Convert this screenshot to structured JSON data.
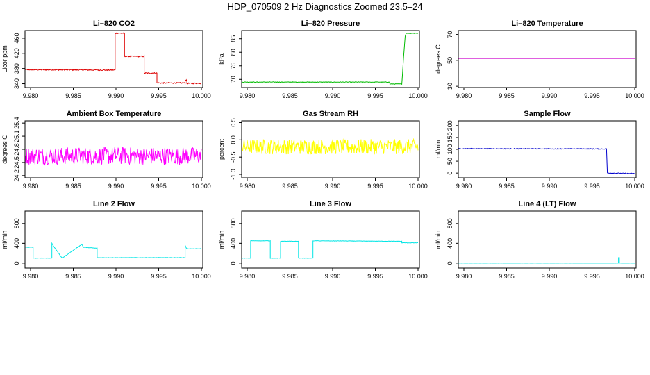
{
  "title": "HDP_070509  2 Hz Diagnostics Zoomed 23.5–24",
  "chart_data": [
    {
      "type": "line",
      "title": "Li–820 CO2",
      "xlabel": "",
      "ylabel": "Licor ppm",
      "color": "#dd0000",
      "xlim": [
        9.979,
        10.0
      ],
      "ylim": [
        330,
        480
      ],
      "xticks": [
        9.98,
        9.985,
        9.99,
        9.995,
        10.0
      ],
      "xticklabels": [
        "9.980",
        "9.985",
        "9.990",
        "9.995",
        "10.000"
      ],
      "yticks": [
        340,
        380,
        420,
        460
      ],
      "yticklabels": [
        "340",
        "380",
        "420",
        "460"
      ],
      "noise": 1.5,
      "series": [
        {
          "x": [
            9.979,
            9.9899,
            9.9899,
            9.991,
            9.991,
            9.9933,
            9.9933,
            9.9948,
            9.9948,
            9.9981,
            9.9981,
            9.9983,
            9.9983,
            10.0
          ],
          "y": [
            377,
            376,
            473,
            473,
            412,
            412,
            368,
            368,
            342,
            342,
            350,
            350,
            341,
            341
          ]
        }
      ]
    },
    {
      "type": "line",
      "title": "Li–820 Pressure",
      "xlabel": "",
      "ylabel": "kPa",
      "color": "#00bb00",
      "xlim": [
        9.979,
        10.0
      ],
      "ylim": [
        67,
        88
      ],
      "xticks": [
        9.98,
        9.985,
        9.99,
        9.995,
        10.0
      ],
      "xticklabels": [
        "9.980",
        "9.985",
        "9.990",
        "9.995",
        "10.000"
      ],
      "yticks": [
        70,
        75,
        80,
        85
      ],
      "yticklabels": [
        "70",
        "75",
        "80",
        "85"
      ],
      "noise": 0.1,
      "series": [
        {
          "x": [
            9.979,
            9.9967,
            9.9967,
            9.9981,
            9.9983,
            9.9985,
            9.9986,
            10.0
          ],
          "y": [
            69.0,
            69.0,
            68.3,
            68.3,
            78,
            86,
            87.0,
            87.0
          ]
        }
      ]
    },
    {
      "type": "line",
      "title": "Li–820 Temperature",
      "xlabel": "",
      "ylabel": "degrees C",
      "color": "#cc00cc",
      "xlim": [
        9.979,
        10.0
      ],
      "ylim": [
        29,
        73
      ],
      "xticks": [
        9.98,
        9.985,
        9.99,
        9.995,
        10.0
      ],
      "xticklabels": [
        "9.980",
        "9.985",
        "9.990",
        "9.995",
        "10.000"
      ],
      "yticks": [
        30,
        50,
        70
      ],
      "yticklabels": [
        "30",
        "50",
        "70"
      ],
      "noise": 0,
      "series": [
        {
          "x": [
            9.979,
            10.0
          ],
          "y": [
            51.5,
            51.5
          ]
        }
      ]
    },
    {
      "type": "line",
      "title": "Ambient Box Temperature",
      "xlabel": "",
      "ylabel": "degrees C",
      "color": "#ff00ff",
      "xlim": [
        9.979,
        10.0
      ],
      "ylim": [
        24.15,
        25.45
      ],
      "xticks": [
        9.98,
        9.985,
        9.99,
        9.995,
        10.0
      ],
      "xticklabels": [
        "9.980",
        "9.985",
        "9.990",
        "9.995",
        "10.000"
      ],
      "yticks": [
        24.2,
        24.5,
        24.8,
        25.1,
        25.4
      ],
      "yticklabels": [
        "24.2",
        "24.5",
        "24.8",
        "25.1",
        "25.4"
      ],
      "noise": 0.2,
      "series": [
        {
          "x": [
            9.979,
            10.0
          ],
          "y": [
            24.65,
            24.65
          ]
        }
      ]
    },
    {
      "type": "line",
      "title": "Gas Stream RH",
      "xlabel": "",
      "ylabel": "percent",
      "color": "#ffff00",
      "xlim": [
        9.979,
        10.0
      ],
      "ylim": [
        -1.1,
        0.55
      ],
      "xticks": [
        9.98,
        9.985,
        9.99,
        9.995,
        10.0
      ],
      "xticklabels": [
        "9.980",
        "9.985",
        "9.990",
        "9.995",
        "10.000"
      ],
      "yticks": [
        -1.0,
        -0.5,
        0.0,
        0.5
      ],
      "yticklabels": [
        "-1.0",
        "-0.5",
        "0.0",
        "0.5"
      ],
      "noise": 0.22,
      "series": [
        {
          "x": [
            9.979,
            10.0
          ],
          "y": [
            -0.2,
            -0.2
          ]
        }
      ]
    },
    {
      "type": "line",
      "title": "Sample Flow",
      "xlabel": "",
      "ylabel": "ml/min",
      "color": "#0000cc",
      "xlim": [
        9.979,
        10.0
      ],
      "ylim": [
        -20,
        220
      ],
      "xticks": [
        9.98,
        9.985,
        9.99,
        9.995,
        10.0
      ],
      "xticklabels": [
        "9.980",
        "9.985",
        "9.990",
        "9.995",
        "10.000"
      ],
      "yticks": [
        0,
        50,
        100,
        150,
        200
      ],
      "yticklabels": [
        "0",
        "50",
        "100",
        "150",
        "200"
      ],
      "noise": 1.5,
      "series": [
        {
          "x": [
            9.979,
            9.9967,
            9.9967,
            9.9968,
            10.0
          ],
          "y": [
            103,
            102,
            100,
            0,
            -2
          ]
        }
      ]
    },
    {
      "type": "line",
      "title": "Line 2 Flow",
      "xlabel": "",
      "ylabel": "ml/min",
      "color": "#00e5e5",
      "xlim": [
        9.979,
        10.0
      ],
      "ylim": [
        -100,
        1050
      ],
      "xticks": [
        9.98,
        9.985,
        9.99,
        9.995,
        10.0
      ],
      "xticklabels": [
        "9.980",
        "9.985",
        "9.990",
        "9.995",
        "10.000"
      ],
      "yticks": [
        0,
        400,
        800
      ],
      "yticklabels": [
        "0",
        "400",
        "800"
      ],
      "noise": 4,
      "series": [
        {
          "x": [
            9.979,
            9.9792,
            9.9792,
            9.9803,
            9.9803,
            9.9825,
            9.9825,
            9.9827,
            9.9827,
            9.9837,
            9.9837,
            9.986,
            9.986,
            9.9862,
            9.9862,
            9.9878,
            9.9878,
            9.9981,
            9.9981,
            9.9983,
            9.9983,
            10.0
          ],
          "y": [
            280,
            390,
            320,
            320,
            100,
            100,
            400,
            340,
            340,
            100,
            100,
            380,
            380,
            320,
            320,
            300,
            110,
            110,
            360,
            280,
            290,
            290
          ]
        }
      ]
    },
    {
      "type": "line",
      "title": "Line 3 Flow",
      "xlabel": "",
      "ylabel": "ml/min",
      "color": "#00e5e5",
      "xlim": [
        9.979,
        10.0
      ],
      "ylim": [
        -100,
        1050
      ],
      "xticks": [
        9.98,
        9.985,
        9.99,
        9.995,
        10.0
      ],
      "xticklabels": [
        "9.980",
        "9.985",
        "9.990",
        "9.995",
        "10.000"
      ],
      "yticks": [
        0,
        400,
        800
      ],
      "yticklabels": [
        "0",
        "400",
        "800"
      ],
      "noise": 4,
      "series": [
        {
          "x": [
            9.979,
            9.9791,
            9.9791,
            9.9804,
            9.9804,
            9.9827,
            9.9827,
            9.9839,
            9.9839,
            9.986,
            9.986,
            9.9877,
            9.9877,
            9.9981,
            9.9981,
            10.0
          ],
          "y": [
            430,
            430,
            100,
            100,
            450,
            450,
            100,
            100,
            440,
            440,
            100,
            100,
            450,
            440,
            410,
            410
          ]
        }
      ]
    },
    {
      "type": "line",
      "title": "Line 4 (LT) Flow",
      "xlabel": "",
      "ylabel": "ml/min",
      "color": "#00e5e5",
      "xlim": [
        9.979,
        10.0
      ],
      "ylim": [
        -100,
        1050
      ],
      "xticks": [
        9.98,
        9.985,
        9.99,
        9.995,
        10.0
      ],
      "xticklabels": [
        "9.980",
        "9.985",
        "9.990",
        "9.995",
        "10.000"
      ],
      "yticks": [
        0,
        400,
        800
      ],
      "yticklabels": [
        "0",
        "400",
        "800"
      ],
      "noise": 1,
      "series": [
        {
          "x": [
            9.979,
            9.9981,
            9.9981,
            9.9982,
            9.9982,
            10.0
          ],
          "y": [
            0,
            0,
            110,
            110,
            0,
            0
          ]
        }
      ]
    }
  ]
}
